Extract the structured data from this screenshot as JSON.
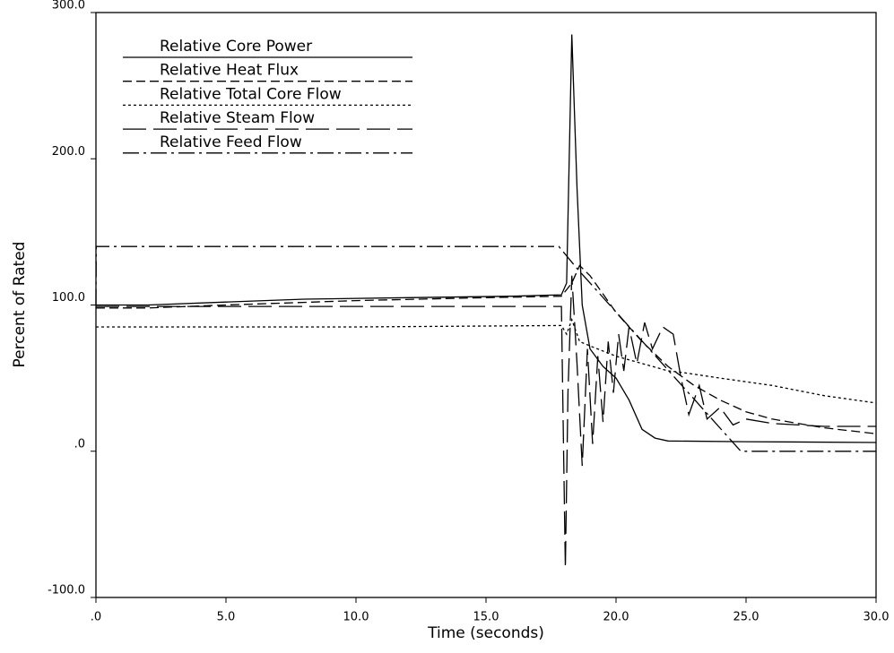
{
  "chart_data": {
    "type": "line",
    "xlabel": "Time (seconds)",
    "ylabel": "Percent of Rated",
    "xlim": [
      0,
      30
    ],
    "ylim": [
      -100,
      300
    ],
    "xticks": [
      {
        "value": 0,
        "label": ".0"
      },
      {
        "value": 5,
        "label": "5.0"
      },
      {
        "value": 10,
        "label": "10.0"
      },
      {
        "value": 15,
        "label": "15.0"
      },
      {
        "value": 20,
        "label": "20.0"
      },
      {
        "value": 25,
        "label": "25.0"
      },
      {
        "value": 30,
        "label": "30.0"
      }
    ],
    "yticks": [
      {
        "value": -100,
        "label": "-100.0"
      },
      {
        "value": 0,
        "label": ".0"
      },
      {
        "value": 100,
        "label": "100.0"
      },
      {
        "value": 200,
        "label": "200.0"
      },
      {
        "value": 300,
        "label": "300.0"
      }
    ],
    "legend": "upper left",
    "series": [
      {
        "name": "Relative Core Power",
        "color": "#000000",
        "dash": "solid",
        "x": [
          0,
          2,
          5,
          8,
          12,
          16,
          17.9,
          18.1,
          18.3,
          18.5,
          18.7,
          19,
          19.5,
          20,
          20.5,
          21,
          21.5,
          22,
          25,
          30
        ],
        "values": [
          100,
          100,
          102,
          104,
          105,
          106,
          107,
          115,
          285,
          180,
          100,
          70,
          58,
          50,
          35,
          15,
          9,
          7,
          6.5,
          6
        ]
      },
      {
        "name": "Relative Heat Flux",
        "color": "#000000",
        "dash": "dashed",
        "x": [
          0,
          2,
          5,
          10,
          15,
          17.9,
          18.3,
          18.6,
          19,
          20,
          21,
          22,
          23,
          24,
          25,
          26,
          28,
          30
        ],
        "values": [
          98,
          98,
          100,
          103,
          105,
          106,
          115,
          127,
          120,
          95,
          75,
          58,
          45,
          35,
          27,
          22,
          16,
          12
        ]
      },
      {
        "name": "Relative Total Core Flow",
        "color": "#000000",
        "dash": "dotted",
        "x": [
          0,
          10,
          17.9,
          18.1,
          18.3,
          18.6,
          19,
          20,
          21,
          22,
          22.5,
          24,
          26,
          28,
          30
        ],
        "values": [
          85,
          85,
          86,
          80,
          90,
          75,
          72,
          65,
          60,
          55,
          54,
          50,
          45,
          38,
          33
        ]
      },
      {
        "name": "Relative Steam Flow",
        "color": "#000000",
        "dash": "longdash",
        "x": [
          0,
          10,
          17.9,
          18.05,
          18.15,
          18.3,
          18.5,
          18.7,
          18.9,
          19.1,
          19.3,
          19.5,
          19.7,
          19.9,
          20.1,
          20.3,
          20.5,
          20.8,
          21.1,
          21.4,
          21.8,
          22.2,
          22.5,
          22.8,
          23.2,
          23.5,
          24,
          24.5,
          25,
          26,
          27,
          28,
          30
        ],
        "values": [
          99,
          99,
          99,
          -80,
          40,
          120,
          60,
          -10,
          70,
          5,
          65,
          20,
          75,
          40,
          80,
          55,
          85,
          60,
          88,
          70,
          85,
          80,
          50,
          25,
          45,
          22,
          30,
          18,
          22,
          19,
          18,
          17,
          17
        ]
      },
      {
        "name": "Relative Feed Flow",
        "color": "#000000",
        "dash": "dashdot",
        "x": [
          0,
          0.01,
          17.8,
          18.5,
          24.8,
          30
        ],
        "values": [
          100,
          140,
          140,
          125,
          0,
          0
        ]
      }
    ]
  }
}
